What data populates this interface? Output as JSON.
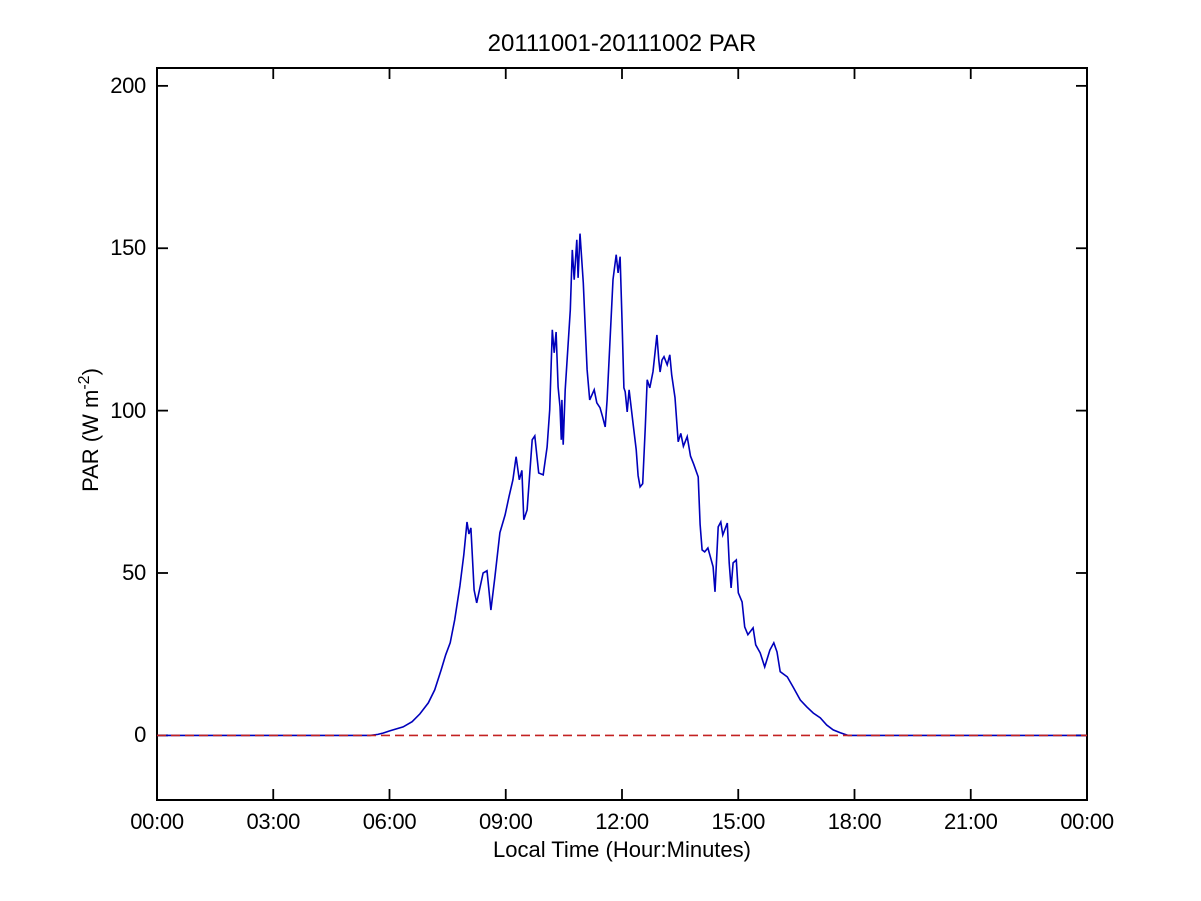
{
  "figure": {
    "background": "#ffffff",
    "axes_box_color": "#000000"
  },
  "chart_data": {
    "type": "line",
    "title": "20111001-20111002 PAR",
    "xlabel": "Local Time (Hour:Minutes)",
    "ylabel": "PAR (W m-2)",
    "ylabel_parts": {
      "main": "PAR (W m",
      "sup": "-2",
      "close": ")"
    },
    "x_axis": {
      "unit": "minutes_of_day",
      "lim": [
        0,
        1440
      ],
      "ticks": [
        {
          "minutes": 0,
          "label": "00:00"
        },
        {
          "minutes": 180,
          "label": "03:00"
        },
        {
          "minutes": 360,
          "label": "06:00"
        },
        {
          "minutes": 540,
          "label": "09:00"
        },
        {
          "minutes": 720,
          "label": "12:00"
        },
        {
          "minutes": 900,
          "label": "15:00"
        },
        {
          "minutes": 1080,
          "label": "18:00"
        },
        {
          "minutes": 1260,
          "label": "21:00"
        },
        {
          "minutes": 1440,
          "label": "00:00"
        }
      ]
    },
    "y_axis": {
      "lim": [
        -19.9,
        205.5
      ],
      "ticks": [
        0,
        50,
        100,
        150,
        200
      ]
    },
    "grid": false,
    "legend": null,
    "series": [
      {
        "name": "PAR",
        "color": "#0000BB",
        "style": "solid",
        "line_width": 1.6,
        "points": [
          [
            0,
            0
          ],
          [
            120,
            0
          ],
          [
            240,
            0
          ],
          [
            330,
            0
          ],
          [
            342,
            0.3
          ],
          [
            350,
            0.7
          ],
          [
            361,
            1.4
          ],
          [
            381,
            2.6
          ],
          [
            395,
            4.2
          ],
          [
            407,
            6.6
          ],
          [
            420,
            10
          ],
          [
            430,
            14
          ],
          [
            440,
            20.2
          ],
          [
            447,
            24.8
          ],
          [
            454,
            28.5
          ],
          [
            461,
            35.6
          ],
          [
            469,
            46
          ],
          [
            475,
            55.6
          ],
          [
            480,
            65.7
          ],
          [
            483,
            62
          ],
          [
            486,
            63.9
          ],
          [
            491,
            44.8
          ],
          [
            495,
            40.8
          ],
          [
            505,
            50
          ],
          [
            511,
            50.7
          ],
          [
            517,
            38.6
          ],
          [
            523,
            48.5
          ],
          [
            531,
            62.4
          ],
          [
            539,
            67.9
          ],
          [
            545,
            73.5
          ],
          [
            551,
            78.7
          ],
          [
            556,
            85.8
          ],
          [
            561,
            78.7
          ],
          [
            565,
            81.6
          ],
          [
            568,
            66.4
          ],
          [
            573,
            69.4
          ],
          [
            581,
            91
          ],
          [
            585,
            92.2
          ],
          [
            591,
            80.8
          ],
          [
            598,
            80.2
          ],
          [
            604,
            88.8
          ],
          [
            608,
            100.2
          ],
          [
            612,
            124.9
          ],
          [
            615,
            117.8
          ],
          [
            618,
            124.2
          ],
          [
            621,
            107.3
          ],
          [
            624,
            101.2
          ],
          [
            626,
            91
          ],
          [
            627,
            103.3
          ],
          [
            629,
            89.5
          ],
          [
            632,
            106.4
          ],
          [
            637,
            121.8
          ],
          [
            640,
            131
          ],
          [
            643,
            149.5
          ],
          [
            646,
            140.3
          ],
          [
            650,
            152.6
          ],
          [
            652,
            140.9
          ],
          [
            655,
            154.5
          ],
          [
            660,
            139.3
          ],
          [
            663,
            125.8
          ],
          [
            666,
            112.6
          ],
          [
            670,
            103.3
          ],
          [
            677,
            106.4
          ],
          [
            681,
            102.4
          ],
          [
            686,
            100.9
          ],
          [
            690,
            98.1
          ],
          [
            694,
            95
          ],
          [
            697,
            103.3
          ],
          [
            701,
            119.6
          ],
          [
            706,
            140.3
          ],
          [
            711,
            148
          ],
          [
            714,
            142.4
          ],
          [
            717,
            147.4
          ],
          [
            720,
            128
          ],
          [
            723,
            107
          ],
          [
            725,
            105.8
          ],
          [
            728,
            99.6
          ],
          [
            731,
            106.4
          ],
          [
            737,
            96.2
          ],
          [
            742,
            88
          ],
          [
            745,
            80
          ],
          [
            748,
            76.5
          ],
          [
            752,
            77.5
          ],
          [
            756,
            95
          ],
          [
            759,
            109.5
          ],
          [
            763,
            107
          ],
          [
            768,
            112
          ],
          [
            774,
            123.3
          ],
          [
            777,
            115.6
          ],
          [
            779,
            111.9
          ],
          [
            782,
            115.6
          ],
          [
            785,
            116.6
          ],
          [
            790,
            114.1
          ],
          [
            794,
            117.2
          ],
          [
            797,
            111
          ],
          [
            802,
            104
          ],
          [
            807,
            90.4
          ],
          [
            811,
            93
          ],
          [
            815,
            89
          ],
          [
            821,
            92
          ],
          [
            826,
            86
          ],
          [
            831,
            83.5
          ],
          [
            838,
            79.6
          ],
          [
            841,
            65
          ],
          [
            844,
            57.1
          ],
          [
            848,
            56.5
          ],
          [
            853,
            57.7
          ],
          [
            856,
            55.6
          ],
          [
            861,
            51.9
          ],
          [
            864,
            44.2
          ],
          [
            869,
            64.2
          ],
          [
            873,
            65.7
          ],
          [
            876,
            61.7
          ],
          [
            883,
            65.4
          ],
          [
            886,
            53.1
          ],
          [
            889,
            45.4
          ],
          [
            892,
            53.1
          ],
          [
            897,
            54
          ],
          [
            900,
            43.9
          ],
          [
            906,
            41.1
          ],
          [
            910,
            33.4
          ],
          [
            915,
            31
          ],
          [
            923,
            33.1
          ],
          [
            927,
            27.9
          ],
          [
            934,
            25.4
          ],
          [
            941,
            21.1
          ],
          [
            949,
            26.3
          ],
          [
            955,
            28.5
          ],
          [
            960,
            25.7
          ],
          [
            965,
            19.6
          ],
          [
            976,
            18
          ],
          [
            985,
            14.9
          ],
          [
            996,
            10.9
          ],
          [
            1006,
            8.8
          ],
          [
            1016,
            6.9
          ],
          [
            1027,
            5.4
          ],
          [
            1037,
            3.2
          ],
          [
            1047,
            1.7
          ],
          [
            1058,
            0.8
          ],
          [
            1070,
            0
          ],
          [
            1200,
            0
          ],
          [
            1320,
            0
          ],
          [
            1440,
            0
          ]
        ]
      },
      {
        "name": "zero-reference",
        "color": "#C32222",
        "style": "dashed",
        "line_width": 1.6,
        "points": [
          [
            0,
            0
          ],
          [
            1440,
            0
          ]
        ]
      }
    ]
  }
}
